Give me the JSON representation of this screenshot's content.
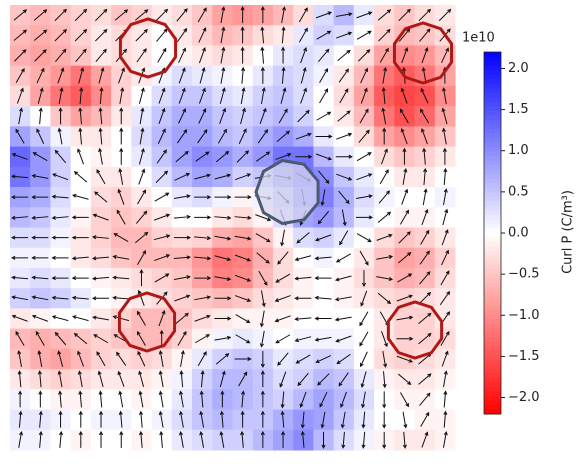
{
  "chart_data": {
    "type": "heatmap",
    "values": [
      [
        -0.5,
        -0.6,
        -0.5,
        -0.4,
        -0.3,
        -0.5,
        -0.4,
        -0.2,
        -0.3,
        -0.5,
        -0.8,
        -0.9,
        -0.8,
        -0.6,
        -0.3,
        0.3,
        0.6,
        0.2,
        -0.3,
        -0.5,
        -0.3,
        -0.2
      ],
      [
        -0.6,
        -0.7,
        -0.6,
        -0.4,
        -0.2,
        -0.3,
        -0.2,
        0.0,
        -0.2,
        -0.4,
        -0.6,
        -0.5,
        -0.3,
        -0.2,
        0.2,
        0.4,
        0.3,
        0.0,
        -0.4,
        -0.6,
        -0.5,
        -0.3
      ],
      [
        -0.7,
        -0.8,
        -0.7,
        -0.5,
        -0.2,
        -0.3,
        -0.2,
        0.0,
        -0.1,
        -0.2,
        -0.3,
        -0.2,
        0.0,
        0.2,
        0.3,
        0.2,
        0.0,
        -0.3,
        -0.8,
        -1.0,
        -0.9,
        -0.6
      ],
      [
        -0.5,
        -0.7,
        -0.9,
        -1.2,
        -0.8,
        -0.4,
        -0.2,
        0.1,
        0.3,
        0.2,
        0.1,
        0.0,
        0.2,
        0.4,
        0.3,
        0.1,
        -0.2,
        -0.6,
        -1.2,
        -1.4,
        -1.2,
        -0.8
      ],
      [
        -0.3,
        -0.8,
        -1.2,
        -1.4,
        -1.0,
        -0.4,
        0.0,
        0.3,
        0.5,
        0.5,
        0.3,
        0.2,
        0.4,
        0.5,
        0.3,
        0.0,
        -0.3,
        -0.8,
        -1.4,
        -1.6,
        -1.5,
        -1.0
      ],
      [
        0.3,
        0.0,
        -0.5,
        -0.8,
        -0.6,
        -0.2,
        0.2,
        0.5,
        0.7,
        0.7,
        0.5,
        0.4,
        0.5,
        0.6,
        0.4,
        0.0,
        -0.2,
        -0.6,
        -1.2,
        -1.5,
        -1.3,
        -0.8
      ],
      [
        0.8,
        0.5,
        0.1,
        -0.2,
        -0.2,
        0.0,
        0.3,
        0.6,
        0.8,
        0.8,
        0.6,
        0.5,
        0.7,
        0.9,
        0.7,
        0.2,
        0.0,
        -0.3,
        -0.8,
        -1.0,
        -0.8,
        -0.5
      ],
      [
        1.3,
        0.9,
        0.4,
        0.0,
        -0.1,
        0.0,
        0.2,
        0.5,
        0.8,
        1.0,
        0.9,
        0.7,
        0.9,
        1.2,
        1.2,
        0.6,
        0.2,
        0.0,
        -0.3,
        -0.5,
        -0.4,
        -0.2
      ],
      [
        1.2,
        0.9,
        0.4,
        0.0,
        -0.2,
        -0.2,
        0.0,
        0.3,
        0.6,
        0.8,
        0.7,
        0.4,
        0.5,
        0.9,
        1.2,
        1.0,
        0.5,
        0.2,
        0.0,
        -0.2,
        -0.2,
        0.0
      ],
      [
        0.8,
        0.7,
        0.3,
        0.0,
        -0.3,
        -0.4,
        -0.2,
        0.0,
        0.2,
        0.3,
        0.1,
        -0.1,
        0.1,
        0.5,
        1.0,
        1.1,
        0.7,
        0.3,
        0.1,
        0.0,
        0.0,
        0.1
      ],
      [
        0.6,
        0.5,
        0.2,
        -0.1,
        -0.4,
        -0.5,
        -0.4,
        -0.2,
        0.0,
        0.0,
        -0.2,
        -0.3,
        -0.1,
        0.3,
        0.8,
        0.9,
        0.6,
        0.2,
        0.0,
        -0.1,
        -0.1,
        0.0
      ],
      [
        0.3,
        0.3,
        0.1,
        -0.2,
        -0.4,
        -0.6,
        -0.6,
        -0.4,
        -0.3,
        -0.4,
        -0.7,
        -0.8,
        -0.5,
        -0.1,
        0.3,
        0.4,
        0.2,
        0.0,
        -0.3,
        -0.5,
        -0.4,
        -0.2
      ],
      [
        0.1,
        0.1,
        0.0,
        -0.2,
        -0.3,
        -0.5,
        -0.6,
        -0.6,
        -0.6,
        -0.9,
        -1.2,
        -1.1,
        -0.7,
        -0.3,
        0.0,
        0.1,
        0.0,
        -0.2,
        -0.5,
        -0.8,
        -0.7,
        -0.4
      ],
      [
        0.2,
        0.3,
        0.2,
        0.0,
        -0.1,
        -0.2,
        -0.3,
        -0.4,
        -0.5,
        -0.8,
        -1.1,
        -1.0,
        -0.6,
        -0.3,
        -0.1,
        0.0,
        -0.1,
        -0.3,
        -0.5,
        -0.7,
        -0.6,
        -0.3
      ],
      [
        0.4,
        0.5,
        0.4,
        0.2,
        0.0,
        -0.1,
        -0.2,
        -0.3,
        -0.4,
        -0.5,
        -0.6,
        -0.5,
        -0.3,
        -0.2,
        -0.1,
        0.0,
        -0.1,
        -0.2,
        -0.3,
        -0.4,
        -0.3,
        -0.2
      ],
      [
        -0.2,
        -0.1,
        0.0,
        0.0,
        -0.2,
        -0.4,
        -0.6,
        -0.6,
        -0.5,
        -0.3,
        -0.2,
        -0.1,
        -0.1,
        -0.1,
        0.0,
        0.0,
        0.0,
        0.0,
        -0.2,
        -0.4,
        -0.4,
        -0.2
      ],
      [
        -0.6,
        -0.7,
        -0.6,
        -0.5,
        -0.4,
        -0.5,
        -0.6,
        -0.6,
        -0.4,
        -0.1,
        0.1,
        0.2,
        0.1,
        0.0,
        0.1,
        0.1,
        0.1,
        0.0,
        -0.2,
        -0.4,
        -0.4,
        -0.3
      ],
      [
        -0.5,
        -0.7,
        -0.8,
        -0.6,
        -0.4,
        -0.3,
        -0.4,
        -0.3,
        -0.1,
        0.2,
        0.4,
        0.5,
        0.4,
        0.2,
        0.3,
        0.4,
        0.3,
        0.0,
        -0.3,
        -0.4,
        -0.3,
        -0.2
      ],
      [
        -0.2,
        -0.3,
        -0.4,
        -0.3,
        -0.2,
        -0.2,
        -0.2,
        -0.1,
        0.1,
        0.4,
        0.6,
        0.6,
        0.5,
        0.3,
        0.4,
        0.6,
        0.5,
        0.2,
        -0.1,
        -0.2,
        -0.2,
        -0.1
      ],
      [
        0.1,
        0.0,
        -0.1,
        -0.1,
        0.0,
        0.0,
        -0.1,
        0.0,
        0.2,
        0.5,
        0.7,
        0.6,
        0.5,
        0.4,
        0.6,
        0.8,
        0.6,
        0.3,
        0.0,
        -0.1,
        -0.1,
        0.0
      ],
      [
        0.2,
        0.2,
        0.1,
        0.0,
        0.1,
        0.1,
        0.0,
        0.1,
        0.3,
        0.5,
        0.6,
        0.5,
        0.5,
        0.7,
        0.9,
        0.8,
        0.5,
        0.2,
        0.0,
        0.0,
        -0.1,
        -0.1
      ],
      [
        0.1,
        0.1,
        0.0,
        -0.1,
        0.0,
        0.0,
        -0.1,
        0.0,
        0.2,
        0.3,
        0.4,
        0.4,
        0.6,
        0.8,
        1.0,
        0.6,
        0.3,
        0.1,
        -0.1,
        -0.2,
        -0.2,
        -0.1
      ]
    ],
    "arrow_angles": [
      [
        40,
        40,
        45,
        45,
        45,
        40,
        40,
        45,
        50,
        60,
        80,
        90,
        90,
        80,
        60,
        20,
        10,
        20,
        40,
        45,
        45,
        45
      ],
      [
        40,
        40,
        45,
        45,
        45,
        45,
        45,
        50,
        55,
        65,
        80,
        90,
        95,
        85,
        60,
        30,
        20,
        30,
        45,
        50,
        50,
        50
      ],
      [
        45,
        45,
        50,
        50,
        50,
        50,
        55,
        60,
        65,
        70,
        80,
        90,
        95,
        90,
        70,
        50,
        40,
        45,
        60,
        70,
        70,
        65
      ],
      [
        60,
        65,
        70,
        75,
        75,
        70,
        70,
        70,
        70,
        75,
        80,
        85,
        90,
        85,
        75,
        60,
        55,
        65,
        80,
        95,
        100,
        90
      ],
      [
        70,
        75,
        80,
        85,
        85,
        80,
        75,
        70,
        70,
        70,
        75,
        80,
        80,
        75,
        70,
        60,
        60,
        70,
        95,
        110,
        115,
        100
      ],
      [
        80,
        85,
        90,
        95,
        95,
        90,
        80,
        70,
        65,
        65,
        70,
        75,
        70,
        60,
        45,
        30,
        40,
        60,
        100,
        120,
        120,
        105
      ],
      [
        120,
        115,
        100,
        95,
        95,
        90,
        80,
        65,
        55,
        55,
        60,
        65,
        55,
        40,
        20,
        0,
        20,
        50,
        90,
        110,
        110,
        100
      ],
      [
        160,
        150,
        130,
        110,
        100,
        90,
        75,
        55,
        40,
        35,
        40,
        45,
        35,
        20,
        0,
        -20,
        0,
        30,
        70,
        90,
        95,
        90
      ],
      [
        175,
        170,
        160,
        140,
        120,
        100,
        70,
        45,
        25,
        15,
        15,
        20,
        10,
        -10,
        -30,
        -50,
        -20,
        20,
        60,
        80,
        85,
        85
      ],
      [
        180,
        180,
        175,
        165,
        140,
        110,
        60,
        30,
        10,
        0,
        0,
        0,
        -10,
        -45,
        -80,
        -100,
        -50,
        10,
        50,
        70,
        80,
        80
      ],
      [
        185,
        185,
        185,
        180,
        160,
        120,
        50,
        20,
        5,
        0,
        -5,
        -5,
        -20,
        -70,
        -110,
        -130,
        -80,
        0,
        40,
        60,
        70,
        75
      ],
      [
        180,
        180,
        180,
        180,
        175,
        150,
        40,
        15,
        0,
        -5,
        -10,
        -10,
        -30,
        -100,
        -140,
        -160,
        -120,
        -30,
        20,
        45,
        60,
        70
      ],
      [
        180,
        180,
        180,
        185,
        185,
        170,
        60,
        20,
        5,
        -5,
        -15,
        -20,
        -40,
        -130,
        -165,
        -175,
        -150,
        -60,
        10,
        40,
        55,
        65
      ],
      [
        175,
        175,
        180,
        180,
        185,
        175,
        90,
        30,
        10,
        0,
        -10,
        -20,
        -60,
        -150,
        -175,
        -180,
        -165,
        -90,
        -10,
        30,
        50,
        60
      ],
      [
        170,
        170,
        175,
        175,
        180,
        175,
        110,
        50,
        20,
        10,
        0,
        -20,
        -80,
        -160,
        -180,
        -185,
        -170,
        -110,
        -40,
        20,
        45,
        55
      ],
      [
        160,
        160,
        165,
        165,
        170,
        165,
        120,
        70,
        40,
        20,
        0,
        -30,
        -100,
        -160,
        -175,
        -180,
        -170,
        -120,
        -60,
        10,
        40,
        55
      ],
      [
        120,
        120,
        130,
        140,
        150,
        150,
        120,
        90,
        60,
        30,
        10,
        -30,
        -100,
        -150,
        -165,
        -170,
        -160,
        -120,
        -70,
        0,
        40,
        60
      ],
      [
        100,
        100,
        105,
        110,
        120,
        125,
        115,
        100,
        80,
        60,
        40,
        0,
        -90,
        -130,
        -150,
        -155,
        -145,
        -115,
        -80,
        -20,
        40,
        70
      ],
      [
        95,
        95,
        100,
        100,
        105,
        110,
        105,
        100,
        95,
        85,
        75,
        60,
        90,
        -110,
        -130,
        -135,
        -125,
        -105,
        -85,
        -40,
        40,
        80
      ],
      [
        90,
        90,
        95,
        95,
        95,
        100,
        100,
        100,
        100,
        95,
        90,
        85,
        90,
        -95,
        -110,
        -115,
        -110,
        -100,
        -90,
        -60,
        50,
        85
      ],
      [
        85,
        85,
        90,
        90,
        90,
        95,
        95,
        100,
        100,
        100,
        95,
        90,
        90,
        95,
        -95,
        -100,
        -100,
        -95,
        -90,
        -80,
        60,
        85
      ],
      [
        80,
        85,
        85,
        90,
        90,
        90,
        95,
        95,
        100,
        100,
        100,
        95,
        90,
        90,
        95,
        -90,
        -95,
        -95,
        -90,
        -85,
        70,
        80
      ]
    ],
    "clim": [
      -2.2,
      2.2
    ],
    "cticks": [
      {
        "value": -2,
        "label": "−2.0"
      },
      {
        "value": -1.5,
        "label": "−1.5"
      },
      {
        "value": -1,
        "label": "−1.0"
      },
      {
        "value": -0.5,
        "label": "−0.5"
      },
      {
        "value": 0,
        "label": "0.0"
      },
      {
        "value": 0.5,
        "label": "0.5"
      },
      {
        "value": 1,
        "label": "1.0"
      },
      {
        "value": 1.5,
        "label": "1.5"
      },
      {
        "value": 2,
        "label": "2.0"
      }
    ],
    "offset_label": "1e10",
    "colorbar_label": "Curl P (C/m³)",
    "cmap": {
      "negative": "#ff0000",
      "zero": "#ffffff",
      "positive": "#0000ff"
    }
  }
}
